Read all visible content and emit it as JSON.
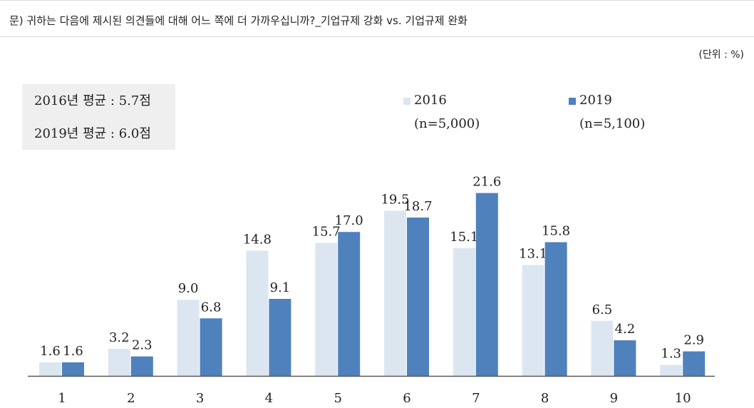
{
  "question": "문) 귀하는 다음에 제시된 의견들에 대해 어느 쪽에 더 가까우십니까?_기업규제 강화 vs. 기업규제 완화",
  "unit": "(단위 : %)",
  "averages": {
    "line1": "2016년 평균 : 5.7점",
    "line2": "2019년 평균 : 6.0점"
  },
  "legend": [
    {
      "label": "2016",
      "n": "(n=5,000)",
      "color": "#dce6f1"
    },
    {
      "label": "2019",
      "n": "(n=5,100)",
      "color": "#4f81bd"
    }
  ],
  "chart_data": {
    "type": "bar",
    "categories": [
      "1",
      "2",
      "3",
      "4",
      "5",
      "6",
      "7",
      "8",
      "9",
      "10"
    ],
    "series": [
      {
        "name": "2016",
        "values": [
          1.6,
          3.2,
          9.0,
          14.8,
          15.7,
          19.5,
          15.1,
          13.1,
          6.5,
          1.3
        ],
        "color": "#dce6f1"
      },
      {
        "name": "2019",
        "values": [
          1.6,
          2.3,
          6.8,
          9.1,
          17.0,
          18.7,
          21.6,
          15.8,
          4.2,
          2.9
        ],
        "color": "#4f81bd"
      }
    ],
    "value_labels": [
      [
        "1.6",
        "3.2",
        "9.0",
        "14.8",
        "15.7",
        "19.5",
        "15.1",
        "13.1",
        "6.5",
        "1.3"
      ],
      [
        "1.6",
        "2.3",
        "6.8",
        "9.1",
        "17.0",
        "18.7",
        "21.6",
        "15.8",
        "4.2",
        "2.9"
      ]
    ],
    "title": "",
    "xlabel": "",
    "ylabel": "",
    "ylim": [
      0,
      23
    ],
    "grid": false,
    "legend_position": "top"
  }
}
